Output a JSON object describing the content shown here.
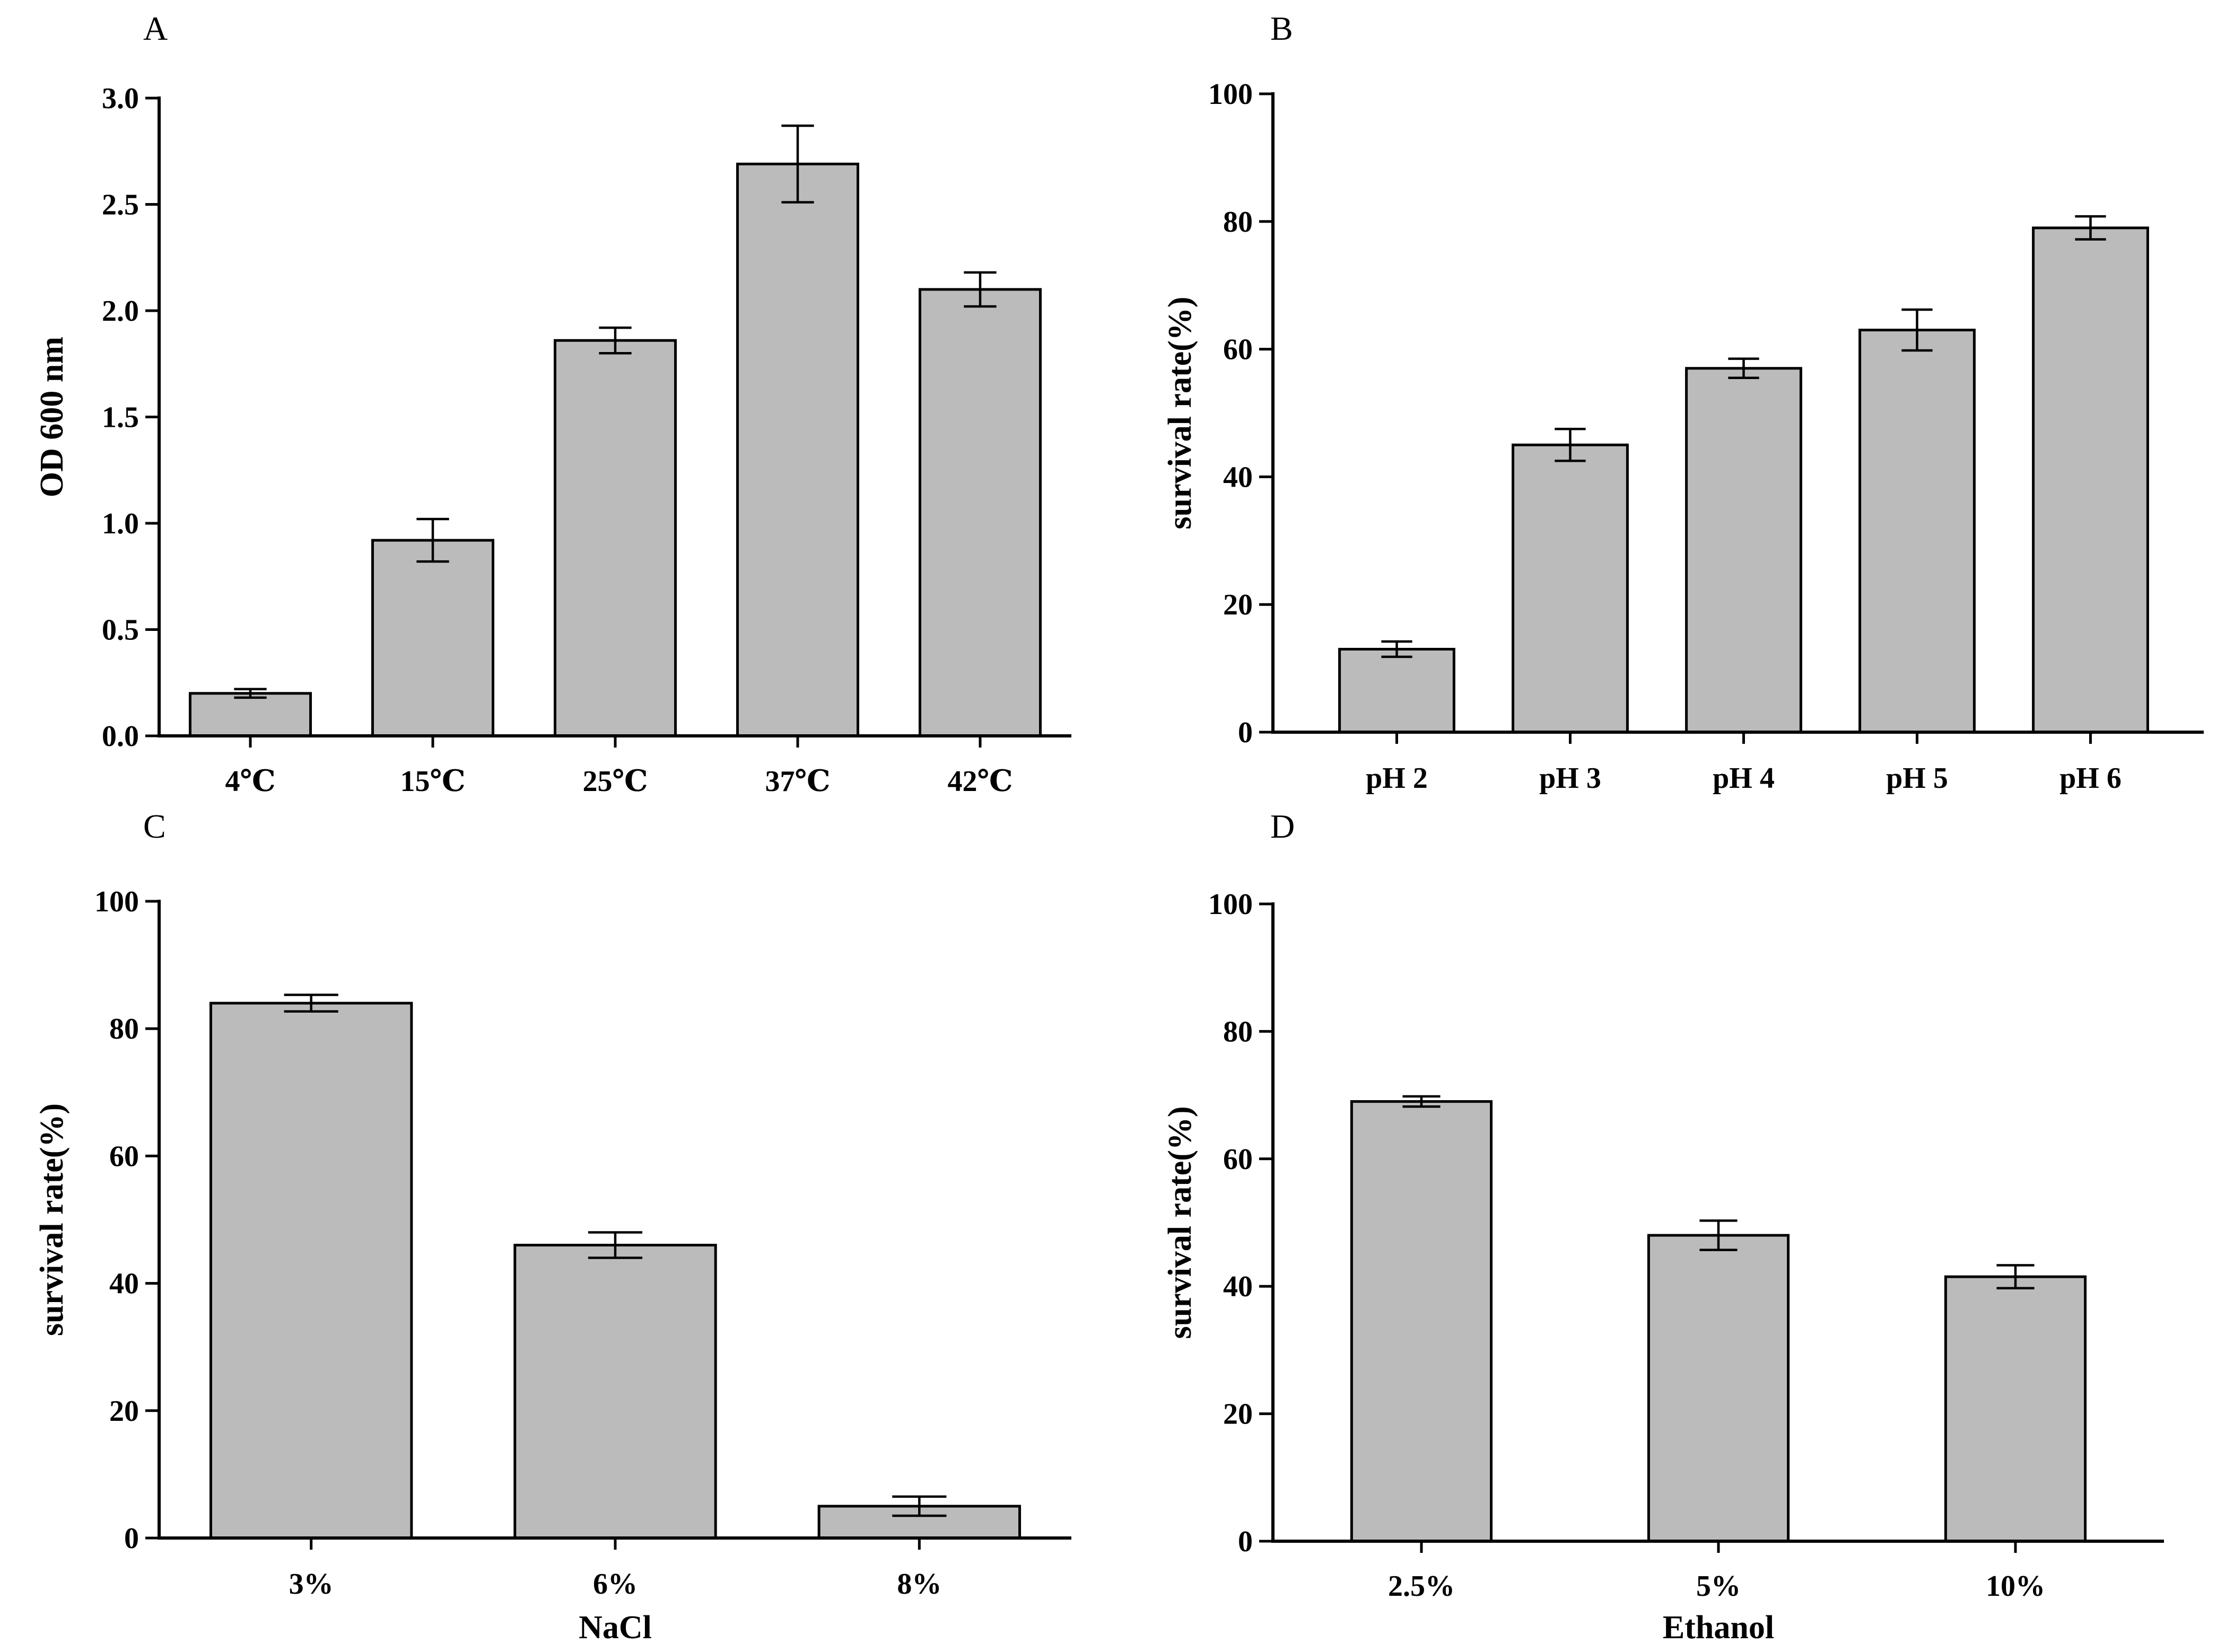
{
  "chart_data": [
    {
      "type": "bar",
      "panel": "A",
      "title": "",
      "xlabel": "",
      "ylabel": "OD 600 nm",
      "ylim": [
        0,
        3.0
      ],
      "yticks": [
        0.0,
        0.5,
        1.0,
        1.5,
        2.0,
        2.5,
        3.0
      ],
      "ytick_labels": [
        "0.0",
        "0.5",
        "1.0",
        "1.5",
        "2.0",
        "2.5",
        "3.0"
      ],
      "categories": [
        "4℃",
        "15℃",
        "25℃",
        "37℃",
        "42℃"
      ],
      "values": [
        0.2,
        0.92,
        1.86,
        2.69,
        2.1
      ],
      "errors": [
        0.02,
        0.1,
        0.06,
        0.18,
        0.08
      ],
      "grid": false,
      "bar_color": "#bbbbbb"
    },
    {
      "type": "bar",
      "panel": "B",
      "title": "",
      "xlabel": "",
      "ylabel": "survival rate(%)",
      "ylim": [
        0,
        100
      ],
      "yticks": [
        0,
        20,
        40,
        60,
        80,
        100
      ],
      "ytick_labels": [
        "0",
        "20",
        "40",
        "60",
        "80",
        "100"
      ],
      "categories": [
        "pH 2",
        "pH 3",
        "pH 4",
        "pH 5",
        "pH 6"
      ],
      "values": [
        13,
        45,
        57,
        63,
        79
      ],
      "errors": [
        1.2,
        2.5,
        1.5,
        3.2,
        1.8
      ],
      "grid": false,
      "bar_color": "#bbbbbb"
    },
    {
      "type": "bar",
      "panel": "C",
      "title": "",
      "xlabel": "NaCl",
      "ylabel": "survival rate(%)",
      "ylim": [
        0,
        100
      ],
      "yticks": [
        0,
        20,
        40,
        60,
        80,
        100
      ],
      "ytick_labels": [
        "0",
        "20",
        "40",
        "60",
        "80",
        "100"
      ],
      "categories": [
        "3%",
        "6%",
        "8%"
      ],
      "values": [
        84,
        46,
        5
      ],
      "errors": [
        1.3,
        2.0,
        1.5
      ],
      "grid": false,
      "bar_color": "#bbbbbb"
    },
    {
      "type": "bar",
      "panel": "D",
      "title": "",
      "xlabel": "Ethanol",
      "ylabel": "survival rate(%)",
      "ylim": [
        0,
        100
      ],
      "yticks": [
        0,
        20,
        40,
        60,
        80,
        100
      ],
      "ytick_labels": [
        "0",
        "20",
        "40",
        "60",
        "80",
        "100"
      ],
      "categories": [
        "2.5%",
        "5%",
        "10%"
      ],
      "values": [
        69,
        48,
        41.5
      ],
      "errors": [
        0.8,
        2.3,
        1.8
      ],
      "grid": false,
      "bar_color": "#bbbbbb"
    }
  ]
}
